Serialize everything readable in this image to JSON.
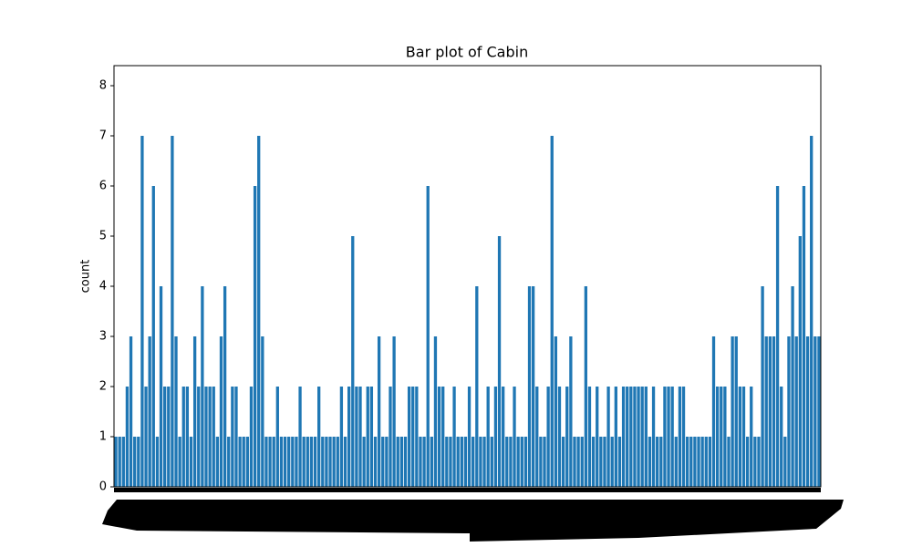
{
  "chart_data": {
    "type": "bar",
    "title": "Bar plot of Cabin",
    "ylabel": "count",
    "color": "#1f77b4",
    "values": [
      1,
      1,
      1,
      2,
      3,
      1,
      1,
      7,
      2,
      3,
      6,
      1,
      4,
      2,
      2,
      7,
      3,
      1,
      2,
      2,
      1,
      3,
      2,
      4,
      2,
      2,
      2,
      1,
      3,
      4,
      1,
      2,
      2,
      1,
      1,
      1,
      2,
      6,
      7,
      3,
      1,
      1,
      1,
      2,
      1,
      1,
      1,
      1,
      1,
      2,
      1,
      1,
      1,
      1,
      2,
      1,
      1,
      1,
      1,
      1,
      2,
      1,
      2,
      5,
      2,
      2,
      1,
      2,
      2,
      1,
      3,
      1,
      1,
      2,
      3,
      1,
      1,
      1,
      2,
      2,
      2,
      1,
      1,
      6,
      1,
      3,
      2,
      2,
      1,
      1,
      2,
      1,
      1,
      1,
      2,
      1,
      4,
      1,
      1,
      2,
      1,
      2,
      5,
      2,
      1,
      1,
      2,
      1,
      1,
      1,
      4,
      4,
      2,
      1,
      1,
      2,
      7,
      3,
      2,
      1,
      2,
      3,
      1,
      1,
      1,
      4,
      2,
      1,
      2,
      1,
      1,
      2,
      1,
      2,
      1,
      2,
      2,
      2,
      2,
      2,
      2,
      2,
      1,
      2,
      1,
      1,
      2,
      2,
      2,
      1,
      2,
      2,
      1,
      1,
      1,
      1,
      1,
      1,
      1,
      3,
      2,
      2,
      2,
      1,
      3,
      3,
      2,
      2,
      1,
      2,
      1,
      1,
      4,
      3,
      3,
      3,
      6,
      2,
      1,
      3,
      4,
      3,
      5,
      6,
      3,
      7,
      3,
      3
    ],
    "ylim": [
      0,
      8.4
    ],
    "yticks": [
      0,
      1,
      2,
      3,
      4,
      5,
      6,
      7,
      8
    ],
    "grid": false
  }
}
